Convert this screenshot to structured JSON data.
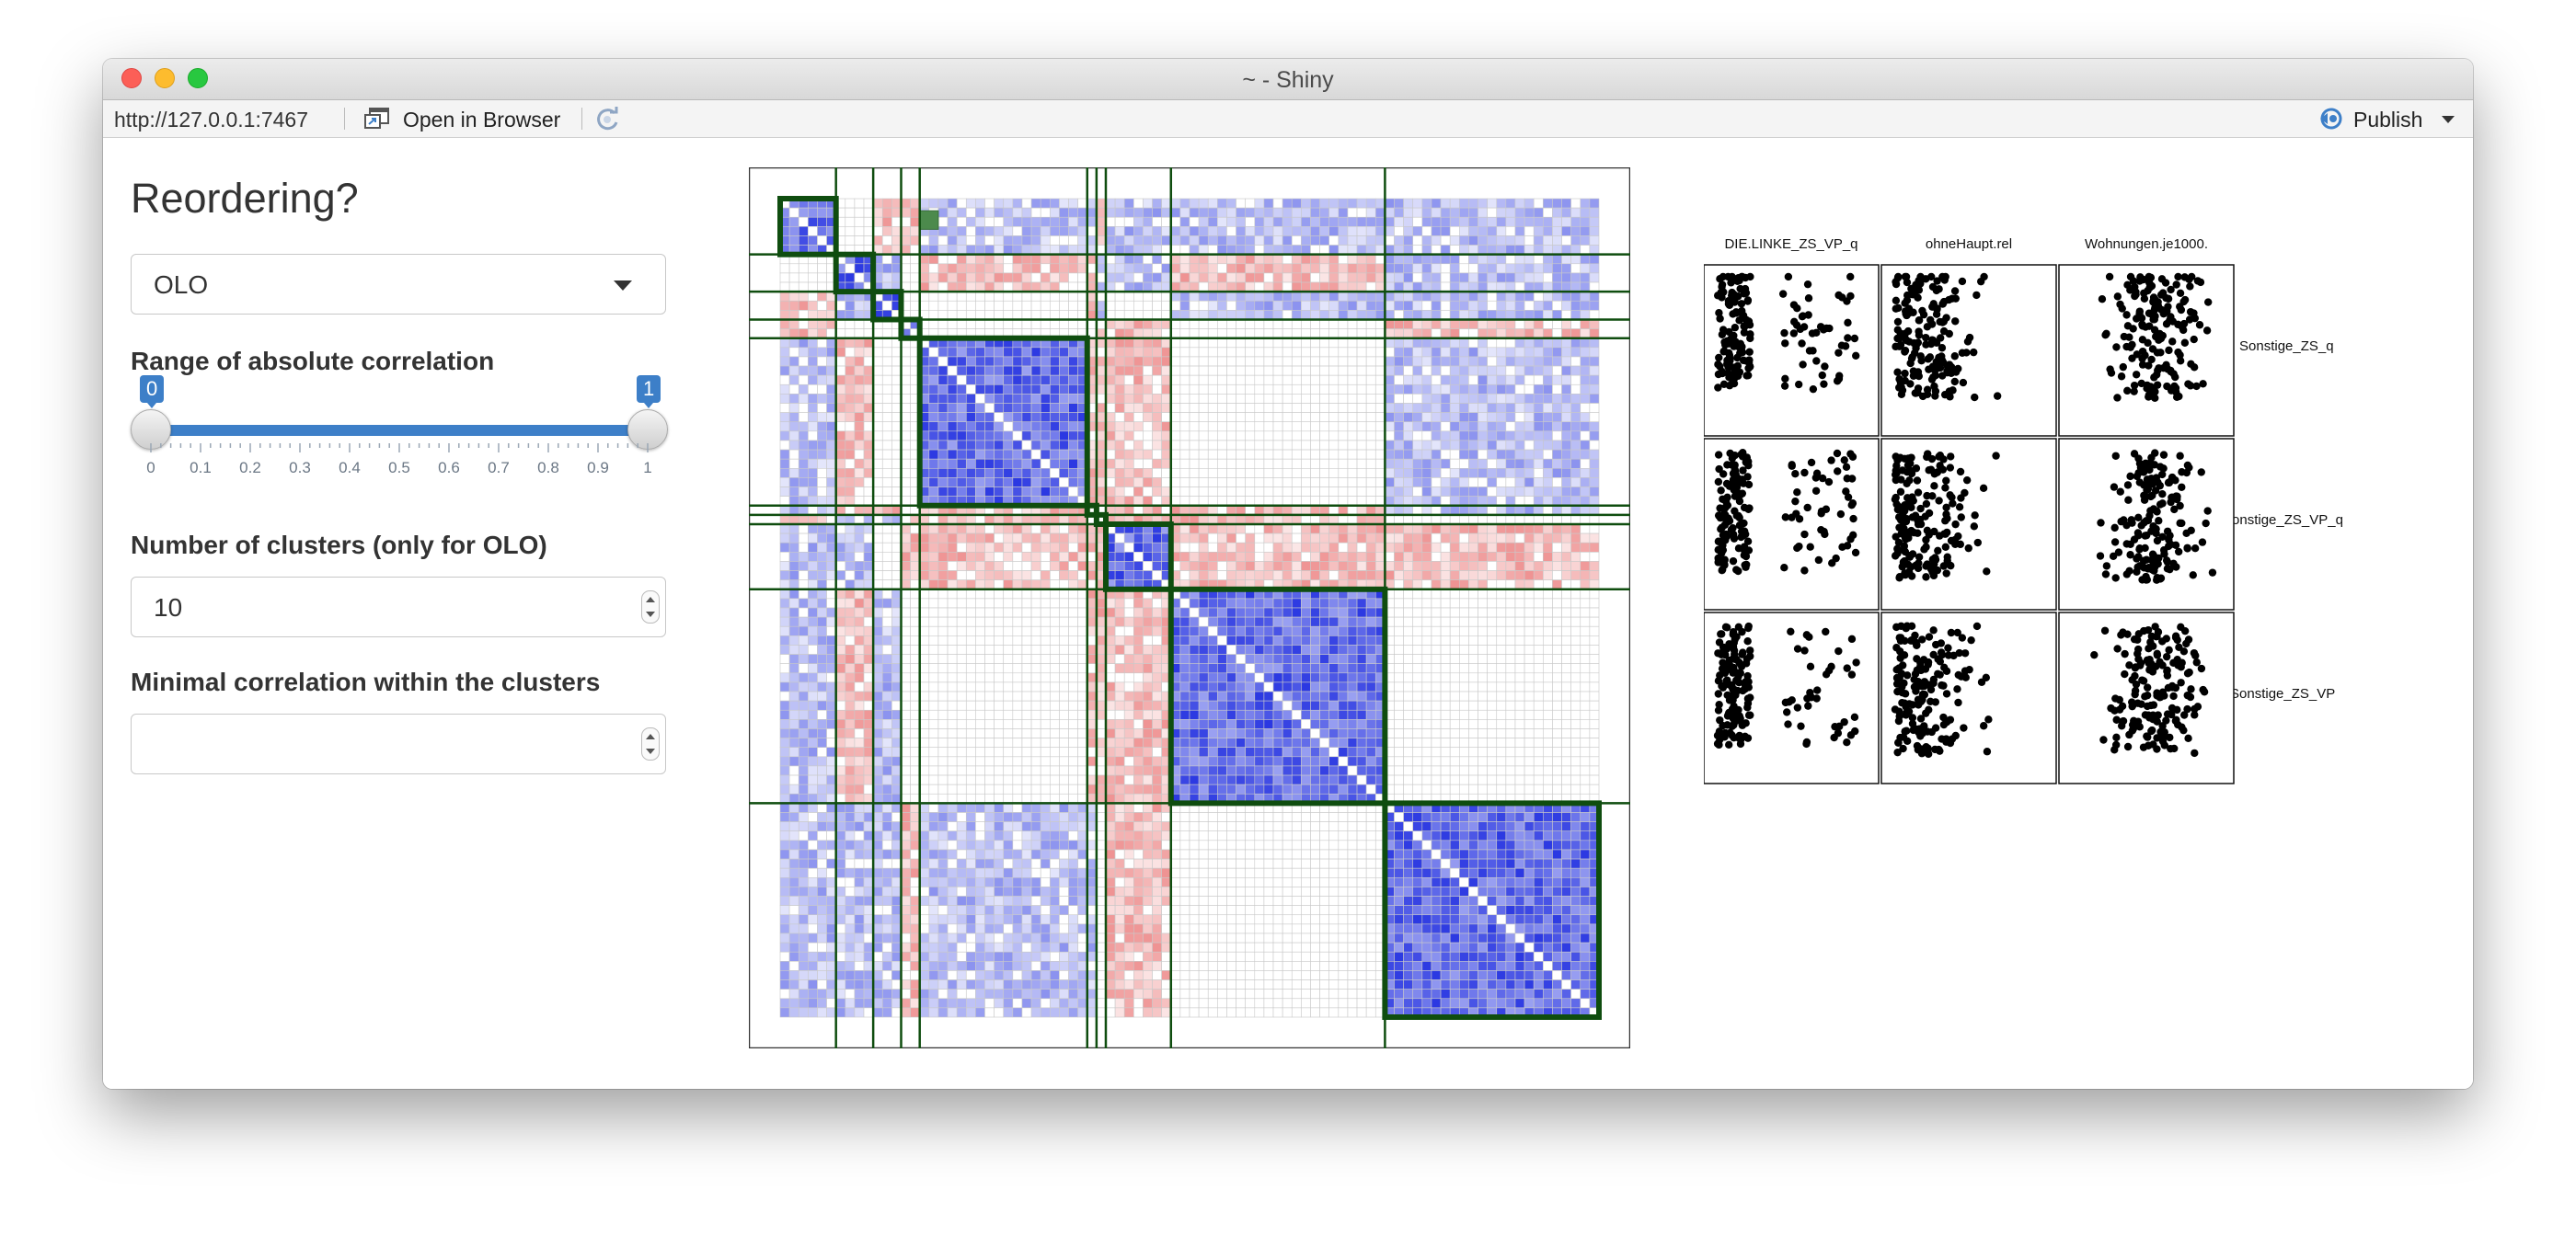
{
  "window": {
    "title": "~ - Shiny"
  },
  "toolbar": {
    "url": "http://127.0.0.1:7467",
    "open_in_browser": "Open in Browser",
    "publish": "Publish",
    "icons": [
      "open-in-browser-icon",
      "refresh-icon",
      "publish-icon",
      "chevron-down-icon"
    ]
  },
  "sidebar": {
    "heading": "Reordering?",
    "reorder_select": {
      "value": "OLO"
    },
    "range_label": "Range of absolute correlation",
    "range_slider": {
      "min": 0,
      "max": 1,
      "value_low": 0,
      "value_high": 1,
      "low_label": "0",
      "high_label": "1",
      "ticks": [
        "0",
        "0.1",
        "0.2",
        "0.3",
        "0.4",
        "0.5",
        "0.6",
        "0.7",
        "0.8",
        "0.9",
        "1"
      ],
      "fill_color": "#3d7fc8"
    },
    "clusters_label": "Number of clusters (only for OLO)",
    "clusters_input": {
      "value": "10"
    },
    "mincorr_label": "Minimal correlation within the clusters",
    "mincorr_input": {
      "value": ""
    }
  },
  "heatmap": {
    "positive_color": "#1f2de0",
    "negative_color": "#e03030",
    "cluster_border_color": "#0f4d0f",
    "highlight_color": "#4c8a4c"
  },
  "pairs_plot": {
    "column_labels": [
      "DIE.LINKE_ZS_VP_q",
      "ohneHaupt.rel",
      "Wohnungen.je1000."
    ],
    "row_labels": [
      "Sonstige_ZS_q",
      "Sonstige_ZS_VP_q",
      "Sonstige_ZS_VP"
    ]
  }
}
